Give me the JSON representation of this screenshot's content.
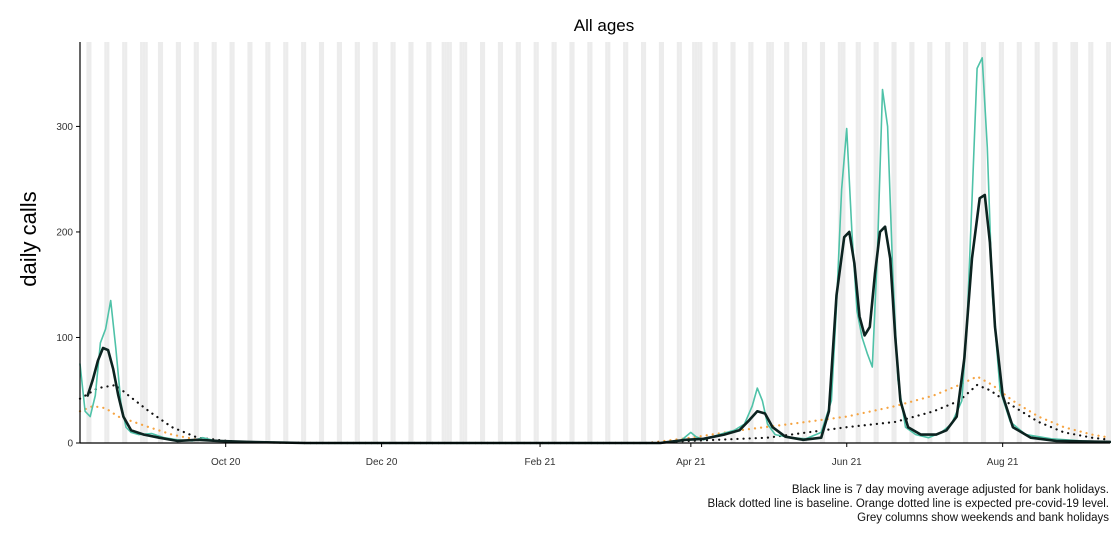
{
  "chart_data": {
    "type": "line",
    "title": "All ages",
    "xlabel": "",
    "ylabel": "daily calls",
    "x_axis": {
      "start": "2020-08-05",
      "end": "2021-09-12",
      "tick_dates": [
        "2020-10-01",
        "2020-12-01",
        "2021-02-01",
        "2021-04-01",
        "2021-06-01",
        "2021-08-01"
      ],
      "tick_labels": [
        "Oct 20",
        "Dec 20",
        "Feb 21",
        "Apr 21",
        "Jun 21",
        "Aug 21"
      ]
    },
    "y_axis": {
      "ylim": [
        0,
        380
      ],
      "ticks": [
        0,
        100,
        200,
        300
      ]
    },
    "grid": "grey columns for weekends and bank holidays",
    "bank_holidays": [
      "2020-08-31",
      "2020-12-25",
      "2020-12-28",
      "2021-01-01",
      "2021-04-02",
      "2021-04-05",
      "2021-05-03",
      "2021-05-31",
      "2021-08-30"
    ],
    "series": [
      {
        "role": "daily calls",
        "color": "#4fc2a8",
        "style": "solid-thin",
        "points": [
          [
            "2020-08-05",
            75
          ],
          [
            "2020-08-07",
            30
          ],
          [
            "2020-08-09",
            25
          ],
          [
            "2020-08-11",
            45
          ],
          [
            "2020-08-13",
            95
          ],
          [
            "2020-08-15",
            108
          ],
          [
            "2020-08-17",
            135
          ],
          [
            "2020-08-19",
            90
          ],
          [
            "2020-08-21",
            38
          ],
          [
            "2020-08-23",
            15
          ],
          [
            "2020-08-25",
            10
          ],
          [
            "2020-08-28",
            8
          ],
          [
            "2020-09-02",
            9
          ],
          [
            "2020-09-07",
            5
          ],
          [
            "2020-09-12",
            3
          ],
          [
            "2020-09-18",
            2
          ],
          [
            "2020-09-22",
            5
          ],
          [
            "2020-09-27",
            2
          ],
          [
            "2020-10-10",
            1
          ],
          [
            "2020-11-01",
            0
          ],
          [
            "2021-03-20",
            0
          ],
          [
            "2021-03-28",
            2
          ],
          [
            "2021-04-01",
            10
          ],
          [
            "2021-04-03",
            6
          ],
          [
            "2021-04-06",
            3
          ],
          [
            "2021-04-12",
            8
          ],
          [
            "2021-04-18",
            12
          ],
          [
            "2021-04-22",
            18
          ],
          [
            "2021-04-25",
            35
          ],
          [
            "2021-04-27",
            52
          ],
          [
            "2021-04-29",
            40
          ],
          [
            "2021-05-01",
            18
          ],
          [
            "2021-05-04",
            8
          ],
          [
            "2021-05-10",
            5
          ],
          [
            "2021-05-16",
            4
          ],
          [
            "2021-05-22",
            10
          ],
          [
            "2021-05-26",
            40
          ],
          [
            "2021-05-28",
            130
          ],
          [
            "2021-05-30",
            240
          ],
          [
            "2021-06-01",
            298
          ],
          [
            "2021-06-03",
            200
          ],
          [
            "2021-06-05",
            125
          ],
          [
            "2021-06-07",
            100
          ],
          [
            "2021-06-09",
            85
          ],
          [
            "2021-06-11",
            72
          ],
          [
            "2021-06-13",
            180
          ],
          [
            "2021-06-15",
            335
          ],
          [
            "2021-06-17",
            300
          ],
          [
            "2021-06-19",
            160
          ],
          [
            "2021-06-21",
            60
          ],
          [
            "2021-06-24",
            15
          ],
          [
            "2021-06-28",
            8
          ],
          [
            "2021-07-03",
            5
          ],
          [
            "2021-07-08",
            10
          ],
          [
            "2021-07-12",
            18
          ],
          [
            "2021-07-16",
            40
          ],
          [
            "2021-07-18",
            110
          ],
          [
            "2021-07-20",
            230
          ],
          [
            "2021-07-22",
            355
          ],
          [
            "2021-07-24",
            365
          ],
          [
            "2021-07-26",
            280
          ],
          [
            "2021-07-28",
            140
          ],
          [
            "2021-07-31",
            50
          ],
          [
            "2021-08-04",
            20
          ],
          [
            "2021-08-10",
            8
          ],
          [
            "2021-08-20",
            4
          ],
          [
            "2021-09-01",
            2
          ],
          [
            "2021-09-12",
            1
          ]
        ]
      },
      {
        "role": "7 day moving average",
        "color": "#0c2320",
        "style": "solid-thick",
        "points": [
          [
            "2020-08-08",
            45
          ],
          [
            "2020-08-10",
            60
          ],
          [
            "2020-08-12",
            78
          ],
          [
            "2020-08-14",
            90
          ],
          [
            "2020-08-16",
            88
          ],
          [
            "2020-08-18",
            70
          ],
          [
            "2020-08-20",
            45
          ],
          [
            "2020-08-22",
            25
          ],
          [
            "2020-08-25",
            12
          ],
          [
            "2020-08-30",
            8
          ],
          [
            "2020-09-05",
            5
          ],
          [
            "2020-09-12",
            2
          ],
          [
            "2020-09-20",
            3
          ],
          [
            "2020-09-28",
            2
          ],
          [
            "2020-10-10",
            1
          ],
          [
            "2020-11-01",
            0
          ],
          [
            "2021-03-20",
            0
          ],
          [
            "2021-03-30",
            3
          ],
          [
            "2021-04-06",
            4
          ],
          [
            "2021-04-14",
            8
          ],
          [
            "2021-04-20",
            12
          ],
          [
            "2021-04-24",
            22
          ],
          [
            "2021-04-27",
            30
          ],
          [
            "2021-04-30",
            28
          ],
          [
            "2021-05-03",
            15
          ],
          [
            "2021-05-08",
            6
          ],
          [
            "2021-05-15",
            3
          ],
          [
            "2021-05-22",
            5
          ],
          [
            "2021-05-25",
            30
          ],
          [
            "2021-05-28",
            140
          ],
          [
            "2021-05-31",
            195
          ],
          [
            "2021-06-02",
            200
          ],
          [
            "2021-06-04",
            170
          ],
          [
            "2021-06-06",
            120
          ],
          [
            "2021-06-08",
            102
          ],
          [
            "2021-06-10",
            110
          ],
          [
            "2021-06-12",
            160
          ],
          [
            "2021-06-14",
            200
          ],
          [
            "2021-06-16",
            205
          ],
          [
            "2021-06-18",
            175
          ],
          [
            "2021-06-20",
            100
          ],
          [
            "2021-06-22",
            40
          ],
          [
            "2021-06-25",
            15
          ],
          [
            "2021-06-30",
            8
          ],
          [
            "2021-07-06",
            8
          ],
          [
            "2021-07-10",
            12
          ],
          [
            "2021-07-14",
            25
          ],
          [
            "2021-07-17",
            80
          ],
          [
            "2021-07-20",
            175
          ],
          [
            "2021-07-23",
            232
          ],
          [
            "2021-07-25",
            235
          ],
          [
            "2021-07-27",
            190
          ],
          [
            "2021-07-29",
            110
          ],
          [
            "2021-08-01",
            45
          ],
          [
            "2021-08-05",
            15
          ],
          [
            "2021-08-12",
            5
          ],
          [
            "2021-08-22",
            2
          ],
          [
            "2021-09-12",
            1
          ]
        ]
      },
      {
        "role": "baseline",
        "color": "#111111",
        "style": "dotted",
        "points": [
          [
            "2020-08-05",
            42
          ],
          [
            "2020-08-12",
            52
          ],
          [
            "2020-08-19",
            55
          ],
          [
            "2020-08-24",
            45
          ],
          [
            "2020-09-01",
            30
          ],
          [
            "2020-09-10",
            15
          ],
          [
            "2020-09-20",
            5
          ],
          [
            "2020-10-05",
            1
          ],
          [
            "2020-11-01",
            0
          ],
          [
            "2021-03-15",
            0
          ],
          [
            "2021-04-01",
            2
          ],
          [
            "2021-05-01",
            5
          ],
          [
            "2021-06-01",
            15
          ],
          [
            "2021-06-20",
            20
          ],
          [
            "2021-07-05",
            30
          ],
          [
            "2021-07-15",
            40
          ],
          [
            "2021-07-22",
            55
          ],
          [
            "2021-07-27",
            50
          ],
          [
            "2021-08-05",
            35
          ],
          [
            "2021-08-15",
            20
          ],
          [
            "2021-08-25",
            10
          ],
          [
            "2021-09-05",
            5
          ],
          [
            "2021-09-12",
            3
          ]
        ]
      },
      {
        "role": "expected pre-covid-19 level",
        "color": "#f5a443",
        "style": "dotted",
        "points": [
          [
            "2020-08-05",
            30
          ],
          [
            "2020-08-10",
            35
          ],
          [
            "2020-08-15",
            33
          ],
          [
            "2020-08-20",
            25
          ],
          [
            "2020-09-01",
            15
          ],
          [
            "2020-09-10",
            8
          ],
          [
            "2020-09-20",
            3
          ],
          [
            "2020-10-05",
            1
          ],
          [
            "2020-11-01",
            0
          ],
          [
            "2021-03-15",
            0
          ],
          [
            "2021-04-01",
            5
          ],
          [
            "2021-04-20",
            12
          ],
          [
            "2021-05-10",
            18
          ],
          [
            "2021-06-01",
            25
          ],
          [
            "2021-06-20",
            35
          ],
          [
            "2021-07-05",
            45
          ],
          [
            "2021-07-15",
            55
          ],
          [
            "2021-07-22",
            63
          ],
          [
            "2021-07-28",
            55
          ],
          [
            "2021-08-05",
            40
          ],
          [
            "2021-08-15",
            25
          ],
          [
            "2021-08-25",
            15
          ],
          [
            "2021-09-05",
            8
          ],
          [
            "2021-09-12",
            5
          ]
        ]
      }
    ]
  },
  "caption_lines": [
    "Black line is 7 day moving average adjusted for bank holidays.",
    "Black dotted line is baseline. Orange dotted line is expected pre-covid-19 level.",
    "Grey columns show weekends and bank holidays"
  ]
}
